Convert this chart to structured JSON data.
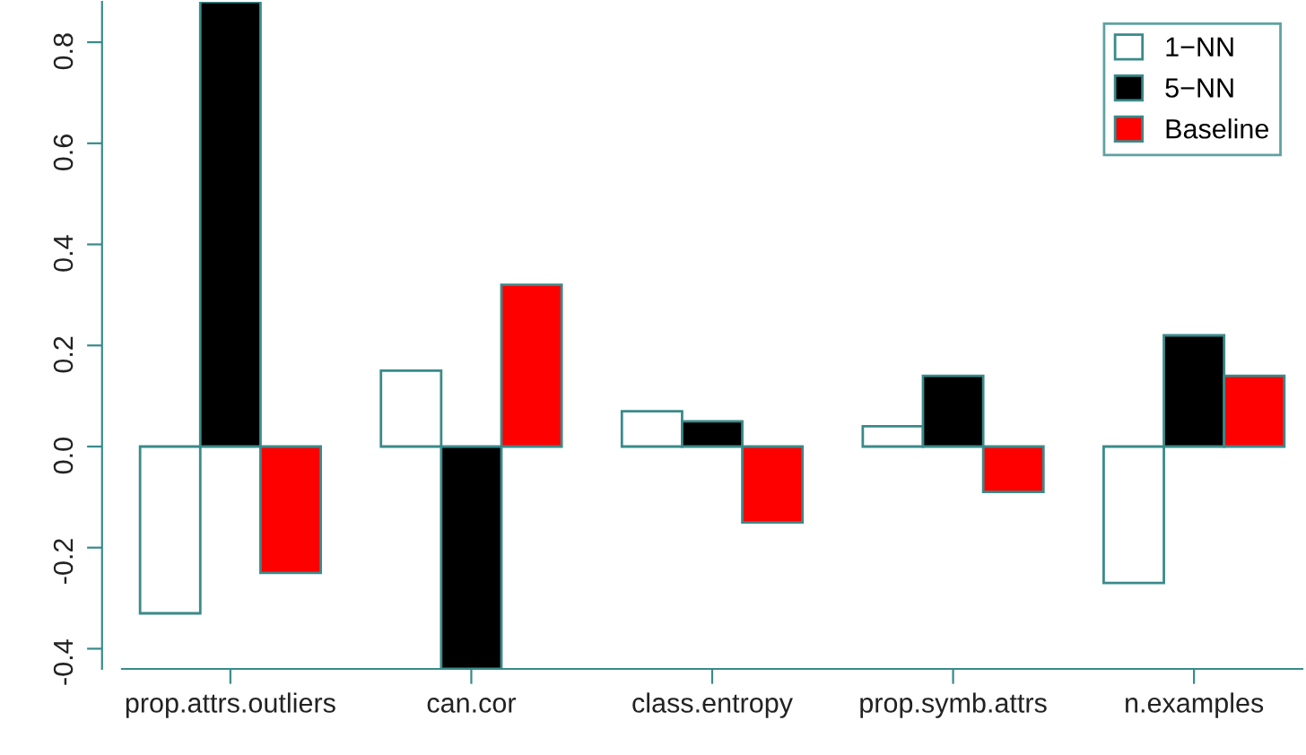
{
  "chart_data": {
    "type": "bar",
    "categories": [
      "prop.attrs.outliers",
      "can.cor",
      "class.entropy",
      "prop.symb.attrs",
      "n.examples"
    ],
    "series": [
      {
        "name": "1−NN",
        "color": "#ffffff",
        "values": [
          -0.33,
          0.15,
          0.07,
          0.04,
          -0.27
        ]
      },
      {
        "name": "5−NN",
        "color": "#000000",
        "values": [
          0.88,
          -0.44,
          0.05,
          0.14,
          0.22
        ]
      },
      {
        "name": "Baseline",
        "color": "#ff0000",
        "values": [
          -0.25,
          0.32,
          -0.15,
          -0.09,
          0.14
        ]
      }
    ],
    "ylim": [
      -0.44,
      0.88
    ],
    "yticks": [
      -0.4,
      -0.2,
      {
        "value": 0,
        "label": "0.0"
      },
      0.2,
      0.4,
      0.6,
      0.8
    ],
    "grid": false,
    "legend": "top right"
  }
}
